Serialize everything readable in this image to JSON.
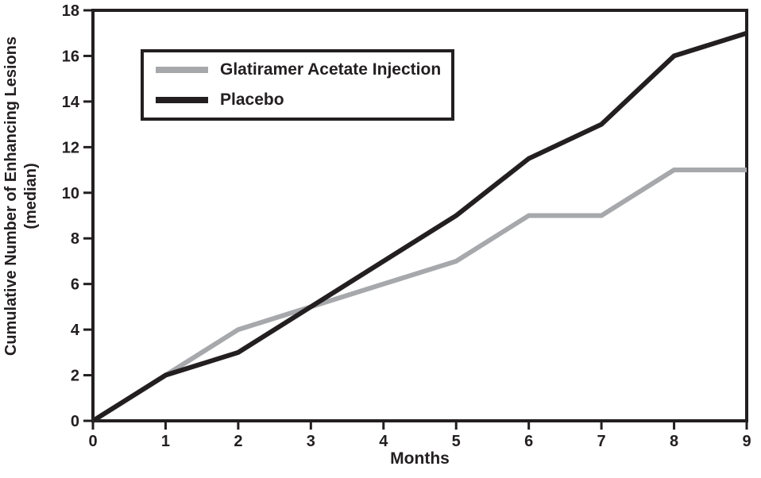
{
  "chart_data": {
    "type": "line",
    "title": "",
    "xlabel": "Months",
    "ylabel": "Cumulative Number of Enhancing Lesions (median)",
    "ylabel_lines": [
      "Cumulative Number of Enhancing Lesions",
      "(median)"
    ],
    "x": [
      0,
      1,
      2,
      3,
      4,
      5,
      6,
      7,
      8,
      9
    ],
    "xlim": [
      0,
      9
    ],
    "ylim": [
      0,
      18
    ],
    "x_ticks": [
      0,
      1,
      2,
      3,
      4,
      5,
      6,
      7,
      8,
      9
    ],
    "y_ticks": [
      0,
      2,
      4,
      6,
      8,
      10,
      12,
      14,
      16,
      18
    ],
    "grid": false,
    "legend_position": "top-left-inside",
    "axis_color": "#231f20",
    "background_color": "#ffffff",
    "series": [
      {
        "name": "Glatiramer Acetate Injection",
        "color": "#a6a8ab",
        "values": [
          0,
          2,
          4,
          5,
          6,
          7,
          9,
          9,
          11,
          11
        ]
      },
      {
        "name": "Placebo",
        "color": "#231f20",
        "values": [
          0,
          2,
          3,
          5,
          7,
          9,
          11.5,
          13,
          16,
          17
        ]
      }
    ]
  }
}
